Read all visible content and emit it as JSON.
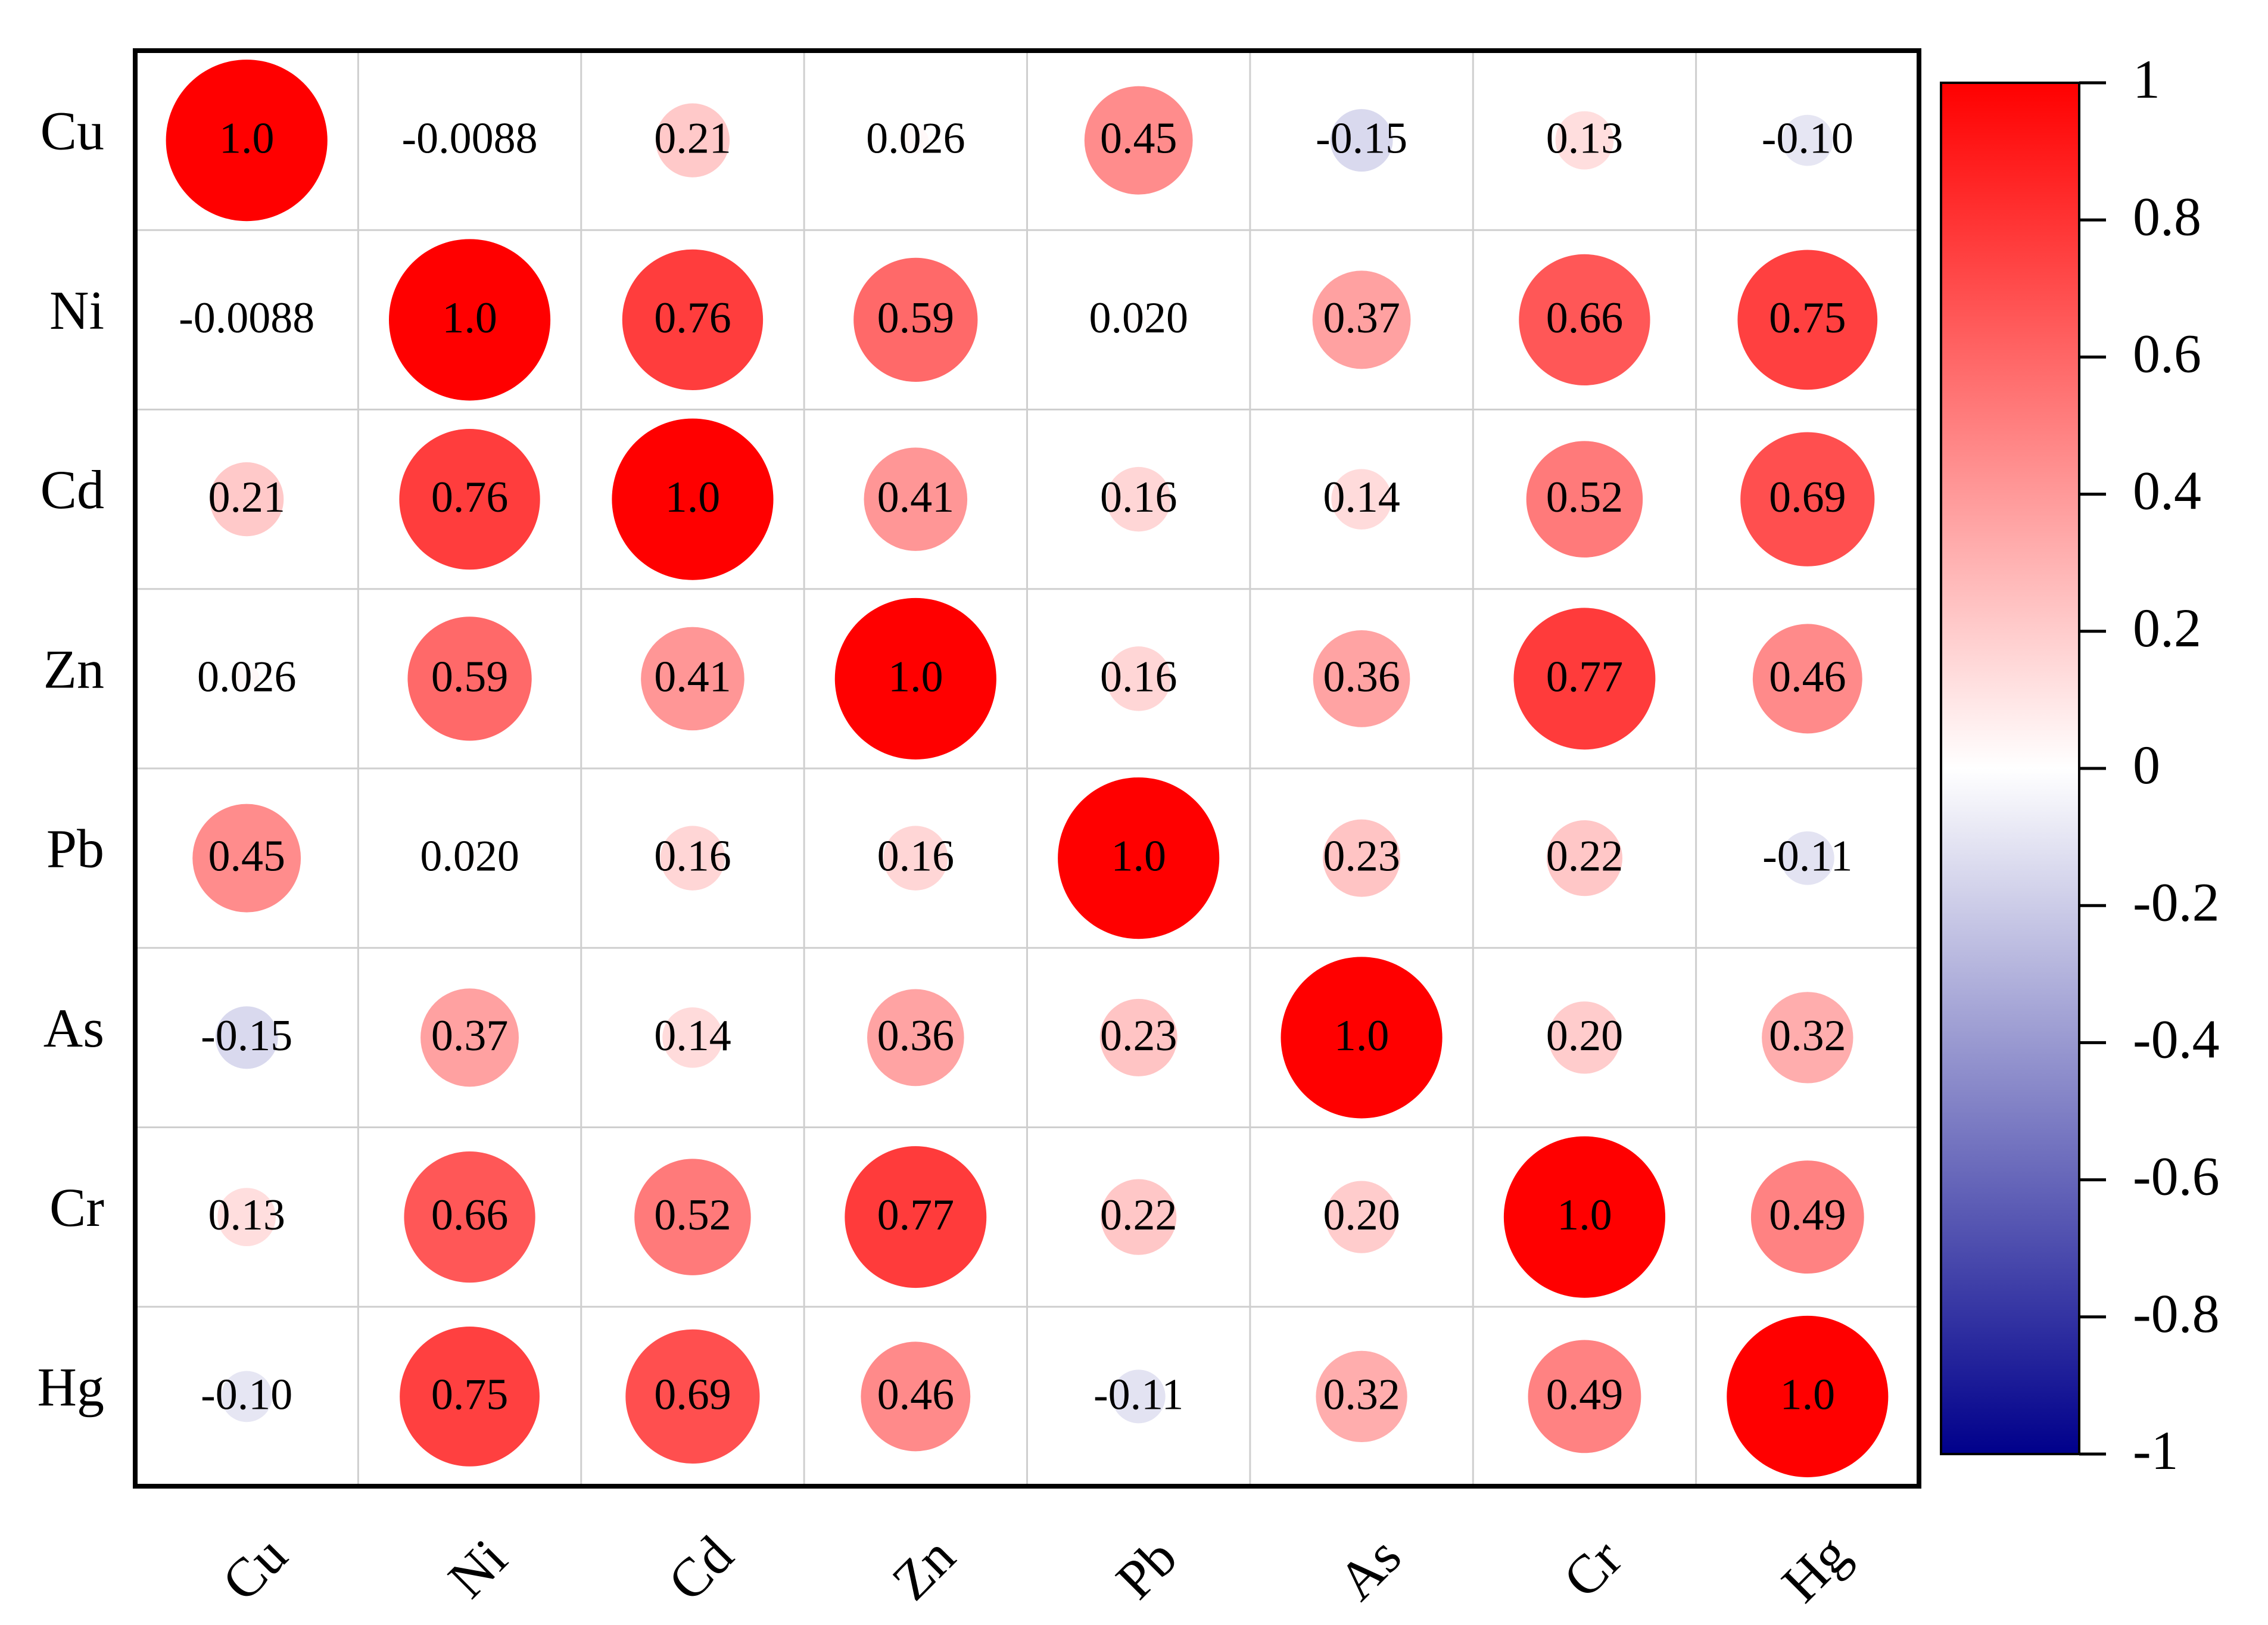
{
  "chart_data": {
    "type": "correlation",
    "categories": [
      "Cu",
      "Ni",
      "Cd",
      "Zn",
      "Pb",
      "As",
      "Cr",
      "Hg"
    ],
    "values": [
      [
        1,
        -0.0088,
        0.21,
        0.026,
        0.45,
        -0.15,
        0.13,
        -0.1
      ],
      [
        -0.0088,
        1,
        0.76,
        0.59,
        0.02,
        0.37,
        0.66,
        0.75
      ],
      [
        0.21,
        0.76,
        1,
        0.41,
        0.16,
        0.14,
        0.52,
        0.69
      ],
      [
        0.026,
        0.59,
        0.41,
        1,
        0.16,
        0.36,
        0.77,
        0.46
      ],
      [
        0.45,
        0.02,
        0.16,
        0.16,
        1,
        0.23,
        0.22,
        -0.11
      ],
      [
        -0.15,
        0.37,
        0.14,
        0.36,
        0.23,
        1,
        0.2,
        0.32
      ],
      [
        0.13,
        0.66,
        0.52,
        0.77,
        0.22,
        0.2,
        1,
        0.49
      ],
      [
        -0.1,
        0.75,
        0.69,
        0.46,
        -0.11,
        0.32,
        0.49,
        1
      ]
    ],
    "value_labels": [
      [
        "1.0",
        "-0.0088",
        "0.21",
        "0.026",
        "0.45",
        "-0.15",
        "0.13",
        "-0.10"
      ],
      [
        "-0.0088",
        "1.0",
        "0.76",
        "0.59",
        "0.020",
        "0.37",
        "0.66",
        "0.75"
      ],
      [
        "0.21",
        "0.76",
        "1.0",
        "0.41",
        "0.16",
        "0.14",
        "0.52",
        "0.69"
      ],
      [
        "0.026",
        "0.59",
        "0.41",
        "1.0",
        "0.16",
        "0.36",
        "0.77",
        "0.46"
      ],
      [
        "0.45",
        "0.020",
        "0.16",
        "0.16",
        "1.0",
        "0.23",
        "0.22",
        "-0.11"
      ],
      [
        "-0.15",
        "0.37",
        "0.14",
        "0.36",
        "0.23",
        "1.0",
        "0.20",
        "0.32"
      ],
      [
        "0.13",
        "0.66",
        "0.52",
        "0.77",
        "0.22",
        "0.20",
        "1.0",
        "0.49"
      ],
      [
        "-0.10",
        "0.75",
        "0.69",
        "0.46",
        "-0.11",
        "0.32",
        "0.49",
        "1.0"
      ]
    ],
    "colormap": [
      "#00008b",
      "#ffffff",
      "#ff0000"
    ],
    "clim": [
      -1,
      1
    ],
    "cticks": [
      1,
      0.8,
      0.6,
      0.4,
      0.2,
      0,
      -0.2,
      -0.4,
      -0.6,
      -0.8,
      -1
    ],
    "grid": true
  }
}
